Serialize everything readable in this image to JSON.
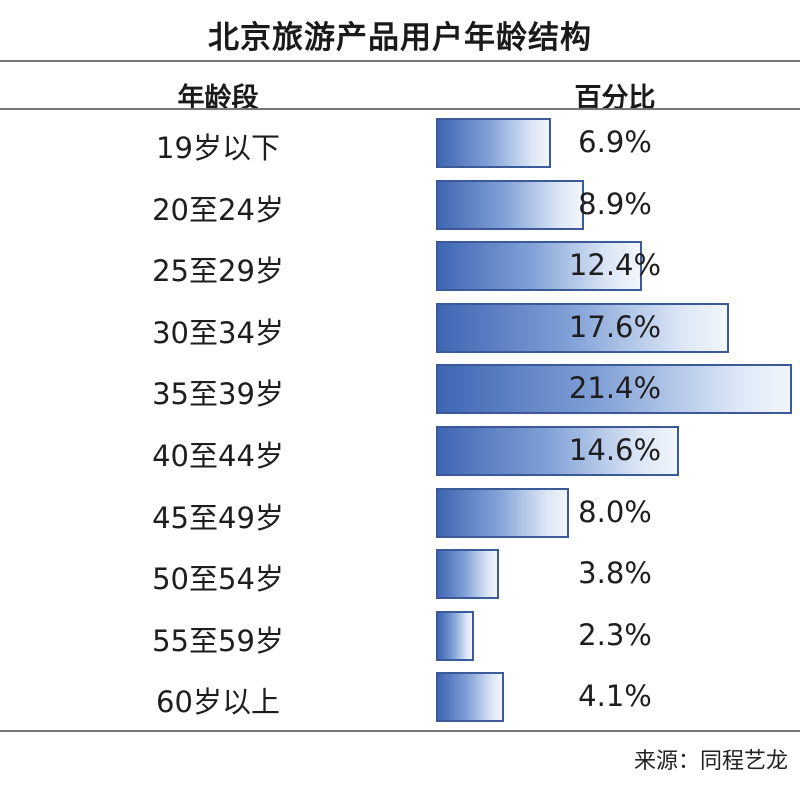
{
  "chart_data": {
    "type": "bar",
    "orientation": "horizontal",
    "title": "北京旅游产品用户年龄结构",
    "column_headers": [
      "年龄段",
      "百分比"
    ],
    "categories": [
      "19岁以下",
      "20至24岁",
      "25至29岁",
      "30至34岁",
      "35至39岁",
      "40至44岁",
      "45至49岁",
      "50至54岁",
      "55至59岁",
      "60岁以上"
    ],
    "values": [
      6.9,
      8.9,
      12.4,
      17.6,
      21.4,
      14.6,
      8.0,
      3.8,
      2.3,
      4.1
    ],
    "value_labels": [
      "6.9%",
      "8.9%",
      "12.4%",
      "17.6%",
      "21.4%",
      "14.6%",
      "8.0%",
      "3.8%",
      "2.3%",
      "4.1%"
    ],
    "unit": "%",
    "source": "来源：同程艺龙",
    "bar_colors": [
      "#3f66b3",
      "#f2f6fc"
    ],
    "border_color": "#3a5a9a"
  }
}
